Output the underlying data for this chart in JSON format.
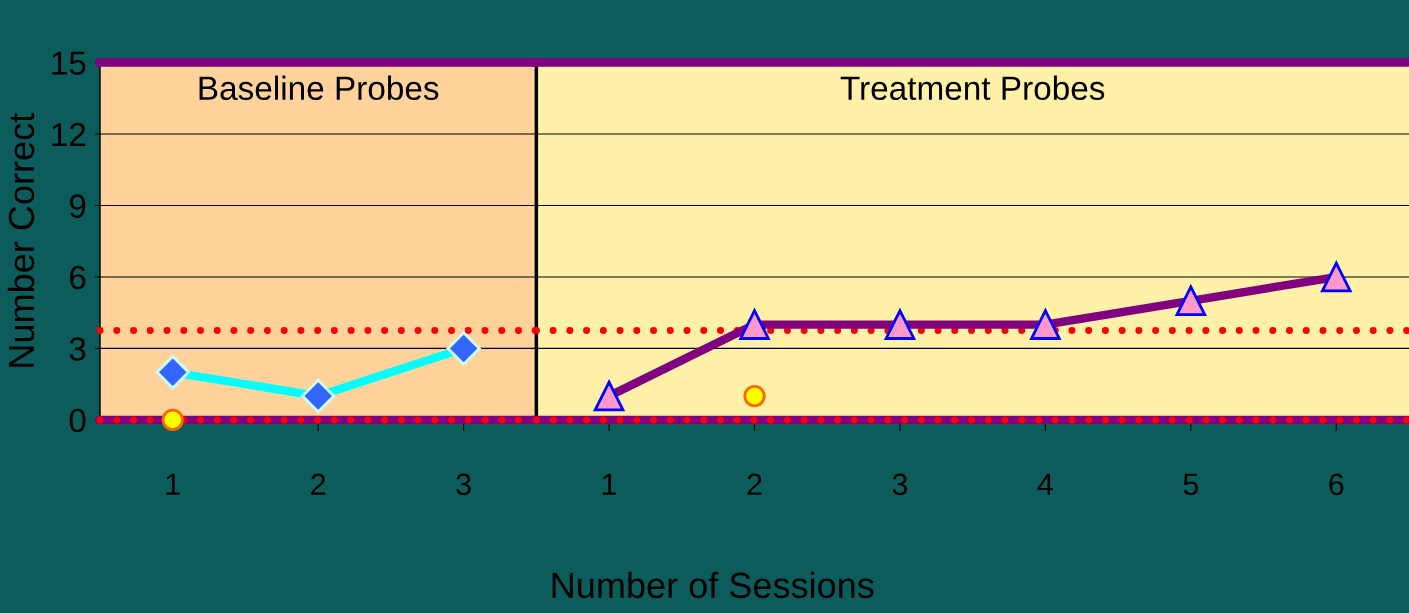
{
  "chart_data": [
    {
      "type": "line",
      "title": "Baseline Probes",
      "ylabel": "Number Correct",
      "categories": [
        "1",
        "2",
        "3"
      ],
      "series": [
        {
          "color": "#00ffff",
          "marker": "diamond",
          "values": [
            2,
            1,
            3
          ]
        },
        {
          "type": "scatter",
          "color": "#ffff00",
          "marker": "circle",
          "values": [
            0,
            null,
            null
          ]
        }
      ],
      "ylim": [
        0,
        15
      ],
      "yticks": [
        0,
        3,
        6,
        9,
        12,
        15
      ],
      "grid": "y",
      "legend": false,
      "ref_lines": [
        {
          "axis": "y",
          "value": 3.75,
          "color": "#ff0000",
          "line_style": "dotted"
        },
        {
          "axis": "y",
          "value": 0,
          "color": "#ff0000",
          "line_style": "dotted"
        }
      ]
    },
    {
      "type": "line",
      "title": "Treatment Probes",
      "xlabel": "Number of Sessions",
      "categories": [
        "1",
        "2",
        "3",
        "4",
        "5",
        "6"
      ],
      "series": [
        {
          "color": "#800080",
          "marker": "triangle",
          "values": [
            1,
            4,
            4,
            4,
            5,
            6
          ]
        },
        {
          "type": "scatter",
          "color": "#ffff00",
          "marker": "circle",
          "values": [
            null,
            1,
            null,
            null,
            null,
            null
          ]
        }
      ],
      "ylim": [
        0,
        15
      ],
      "yticks": [
        0,
        3,
        6,
        9,
        12,
        15
      ],
      "tick_labels": "x",
      "grid": "y",
      "legend": false,
      "ref_lines": [
        {
          "axis": "y",
          "value": 3.75,
          "color": "#ff0000",
          "line_style": "dotted"
        },
        {
          "axis": "y",
          "value": 0,
          "color": "#ff0000",
          "line_style": "dotted"
        }
      ]
    }
  ]
}
